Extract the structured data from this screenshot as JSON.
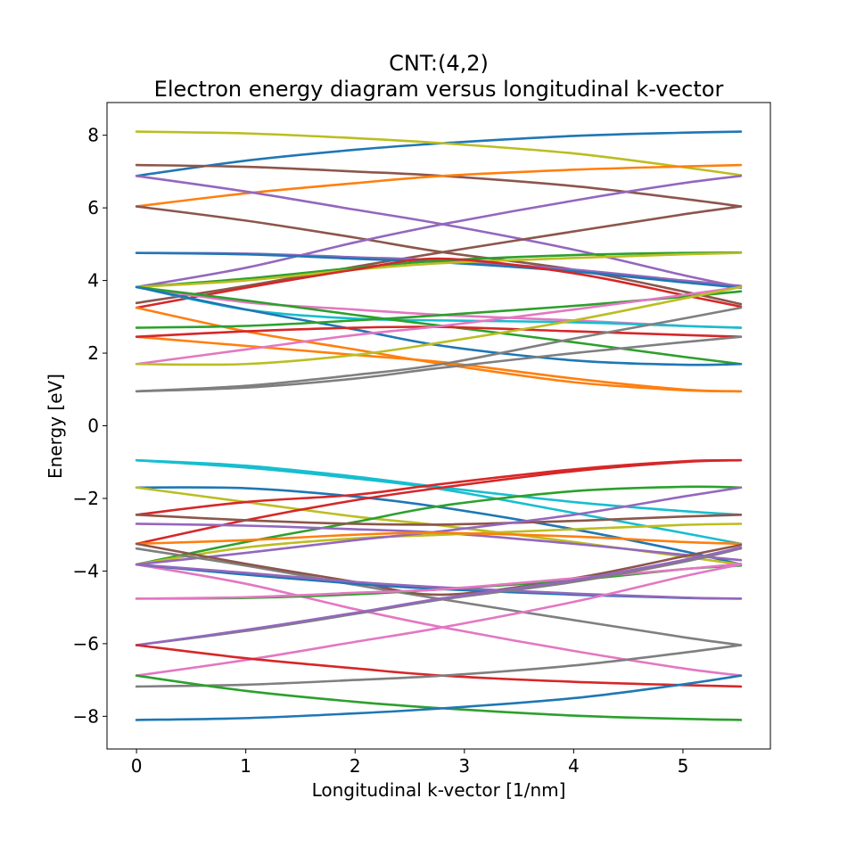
{
  "chart_data": {
    "type": "line",
    "title_line1": "CNT:(4,2)",
    "title_line2": "Electron energy diagram versus longitudinal k-vector",
    "xlabel": "Longitudinal k-vector [1/nm]",
    "ylabel": "Energy [eV]",
    "xlim": [
      -0.27,
      5.8
    ],
    "ylim": [
      -8.9,
      8.9
    ],
    "xticks": [
      0,
      1,
      2,
      3,
      4,
      5
    ],
    "xtick_labels": [
      "0",
      "1",
      "2",
      "3",
      "4",
      "5"
    ],
    "yticks": [
      -8,
      -6,
      -4,
      -2,
      0,
      2,
      4,
      6,
      8
    ],
    "ytick_labels": [
      "−8",
      "−6",
      "−4",
      "−2",
      "0",
      "2",
      "4",
      "6",
      "8"
    ],
    "grid": false,
    "k_max": 5.53,
    "series": [
      {
        "color": "#1f77b4",
        "x": [
          0,
          1,
          2,
          2.8,
          4,
          5,
          5.53
        ],
        "y": [
          6.88,
          7.3,
          7.6,
          7.78,
          7.98,
          8.07,
          8.1
        ]
      },
      {
        "color": "#bcbd22",
        "x": [
          0,
          1,
          2,
          2.8,
          4,
          5,
          5.53
        ],
        "y": [
          8.1,
          8.05,
          7.92,
          7.78,
          7.5,
          7.12,
          6.9
        ]
      },
      {
        "color": "#8c564b",
        "x": [
          0,
          1,
          2,
          2.8,
          4,
          5,
          5.53
        ],
        "y": [
          7.18,
          7.13,
          7.0,
          6.88,
          6.6,
          6.25,
          6.04
        ]
      },
      {
        "color": "#ff7f0e",
        "x": [
          0,
          1,
          2,
          2.8,
          4,
          5,
          5.53
        ],
        "y": [
          6.04,
          6.4,
          6.68,
          6.88,
          7.05,
          7.14,
          7.18
        ]
      },
      {
        "color": "#9467bd",
        "x": [
          0,
          1,
          2,
          2.8,
          4,
          5,
          5.53
        ],
        "y": [
          6.88,
          6.45,
          5.95,
          5.55,
          4.85,
          4.15,
          3.82
        ]
      },
      {
        "color": "#8c564b",
        "x": [
          0,
          1,
          2,
          2.8,
          4,
          5,
          5.53
        ],
        "y": [
          6.04,
          5.65,
          5.18,
          4.78,
          4.3,
          3.7,
          3.35
        ]
      },
      {
        "color": "#9467bd",
        "x": [
          0,
          1,
          2,
          2.8,
          4,
          5,
          5.53
        ],
        "y": [
          3.82,
          4.35,
          5.05,
          5.55,
          6.2,
          6.68,
          6.88
        ]
      },
      {
        "color": "#8c564b",
        "x": [
          0,
          1,
          2,
          2.8,
          4,
          5,
          5.53
        ],
        "y": [
          3.38,
          3.85,
          4.38,
          4.78,
          5.35,
          5.82,
          6.04
        ]
      },
      {
        "color": "#9467bd",
        "x": [
          0,
          1,
          2,
          2.8,
          4,
          5,
          5.53
        ],
        "y": [
          4.76,
          4.74,
          4.64,
          4.55,
          4.3,
          4.0,
          3.85
        ]
      },
      {
        "color": "#1f77b4",
        "x": [
          0,
          1,
          2,
          2.8,
          4,
          5,
          5.53
        ],
        "y": [
          4.76,
          4.72,
          4.6,
          4.5,
          4.25,
          3.95,
          3.8
        ]
      },
      {
        "color": "#2ca02c",
        "x": [
          0,
          1,
          2,
          2.8,
          4,
          5,
          5.53
        ],
        "y": [
          3.82,
          4.05,
          4.35,
          4.55,
          4.7,
          4.76,
          4.77
        ]
      },
      {
        "color": "#bcbd22",
        "x": [
          0,
          1,
          2,
          2.8,
          4,
          5,
          5.53
        ],
        "y": [
          3.82,
          4.0,
          4.3,
          4.48,
          4.62,
          4.72,
          4.76
        ]
      },
      {
        "color": "#d62728",
        "x": [
          0,
          1,
          2,
          2.8,
          4,
          5,
          5.53
        ],
        "y": [
          3.25,
          3.8,
          4.3,
          4.6,
          4.2,
          3.6,
          3.28
        ]
      },
      {
        "color": "#e377c2",
        "x": [
          0,
          1,
          2,
          2.8,
          4,
          5,
          5.53
        ],
        "y": [
          3.82,
          3.4,
          3.2,
          3.05,
          2.9,
          2.75,
          2.7
        ]
      },
      {
        "color": "#17becf",
        "x": [
          0,
          1,
          2,
          2.8,
          4,
          5,
          5.53
        ],
        "y": [
          3.82,
          3.2,
          2.95,
          2.9,
          2.85,
          2.75,
          2.7
        ]
      },
      {
        "color": "#2ca02c",
        "x": [
          0,
          1,
          2,
          2.8,
          4,
          5,
          5.53
        ],
        "y": [
          3.82,
          3.45,
          3.05,
          2.75,
          2.3,
          1.9,
          1.7
        ]
      },
      {
        "color": "#1f77b4",
        "x": [
          0,
          1,
          2,
          2.8,
          4,
          5,
          5.53
        ],
        "y": [
          3.82,
          3.2,
          2.65,
          2.2,
          1.8,
          1.68,
          1.7
        ]
      },
      {
        "color": "#ff7f0e",
        "x": [
          0,
          1,
          2,
          2.8,
          4,
          5,
          5.53
        ],
        "y": [
          3.25,
          2.6,
          2.1,
          1.7,
          1.2,
          0.98,
          0.95
        ]
      },
      {
        "color": "#ff7f0e",
        "x": [
          0,
          1,
          2,
          2.8,
          4,
          5,
          5.53
        ],
        "y": [
          2.45,
          2.2,
          1.95,
          1.75,
          1.3,
          1.0,
          0.95
        ]
      },
      {
        "color": "#d62728",
        "x": [
          0,
          1,
          2,
          2.8,
          4,
          5,
          5.53
        ],
        "y": [
          2.45,
          2.6,
          2.7,
          2.72,
          2.6,
          2.5,
          2.45
        ]
      },
      {
        "color": "#2ca02c",
        "x": [
          0,
          1,
          2,
          2.8,
          4,
          5,
          5.53
        ],
        "y": [
          2.7,
          2.75,
          2.9,
          3.05,
          3.3,
          3.55,
          3.7
        ]
      },
      {
        "color": "#e377c2",
        "x": [
          0,
          1,
          2,
          2.8,
          4,
          5,
          5.53
        ],
        "y": [
          1.7,
          2.1,
          2.5,
          2.75,
          3.2,
          3.6,
          3.82
        ]
      },
      {
        "color": "#bcbd22",
        "x": [
          0,
          1,
          2,
          2.8,
          4,
          5,
          5.53
        ],
        "y": [
          1.7,
          1.7,
          1.95,
          2.3,
          2.9,
          3.5,
          3.82
        ]
      },
      {
        "color": "#7f7f7f",
        "x": [
          0,
          1,
          2,
          2.8,
          4,
          5,
          5.53
        ],
        "y": [
          0.95,
          1.1,
          1.4,
          1.7,
          2.4,
          2.95,
          3.25
        ]
      },
      {
        "color": "#7f7f7f",
        "x": [
          0,
          1,
          2,
          2.8,
          4,
          5,
          5.53
        ],
        "y": [
          0.95,
          1.05,
          1.3,
          1.6,
          2.0,
          2.3,
          2.45
        ]
      },
      {
        "color": "#17becf",
        "x": [
          0,
          1,
          2,
          2.8,
          4,
          5,
          5.53
        ],
        "y": [
          -0.95,
          -1.1,
          -1.4,
          -1.7,
          -2.1,
          -2.35,
          -2.45
        ]
      },
      {
        "color": "#17becf",
        "x": [
          0,
          1,
          2,
          2.8,
          4,
          5,
          5.53
        ],
        "y": [
          -0.95,
          -1.15,
          -1.45,
          -1.75,
          -2.4,
          -2.95,
          -3.25
        ]
      },
      {
        "color": "#1f77b4",
        "x": [
          0,
          1,
          2,
          2.8,
          4,
          5,
          5.53
        ],
        "y": [
          -1.7,
          -1.72,
          -1.95,
          -2.25,
          -2.85,
          -3.45,
          -3.82
        ]
      },
      {
        "color": "#bcbd22",
        "x": [
          0,
          1,
          2,
          2.8,
          4,
          5,
          5.53
        ],
        "y": [
          -1.7,
          -2.1,
          -2.5,
          -2.75,
          -3.2,
          -3.6,
          -3.82
        ]
      },
      {
        "color": "#d62728",
        "x": [
          0,
          1,
          2,
          2.8,
          4,
          5,
          5.53
        ],
        "y": [
          -2.45,
          -2.1,
          -1.9,
          -1.6,
          -1.2,
          -0.98,
          -0.95
        ]
      },
      {
        "color": "#d62728",
        "x": [
          0,
          1,
          2,
          2.8,
          4,
          5,
          5.53
        ],
        "y": [
          -3.25,
          -2.6,
          -2.05,
          -1.7,
          -1.25,
          -1.0,
          -0.95
        ]
      },
      {
        "color": "#2ca02c",
        "x": [
          0,
          1,
          2,
          2.8,
          4,
          5,
          5.53
        ],
        "y": [
          -3.82,
          -3.2,
          -2.65,
          -2.2,
          -1.8,
          -1.68,
          -1.7
        ]
      },
      {
        "color": "#8c564b",
        "x": [
          0,
          1,
          2,
          2.8,
          4,
          5,
          5.53
        ],
        "y": [
          -2.45,
          -2.6,
          -2.7,
          -2.72,
          -2.62,
          -2.5,
          -2.45
        ]
      },
      {
        "color": "#9467bd",
        "x": [
          0,
          1,
          2,
          2.8,
          4,
          5,
          5.53
        ],
        "y": [
          -2.7,
          -2.75,
          -2.85,
          -2.95,
          -3.25,
          -3.55,
          -3.7
        ]
      },
      {
        "color": "#bcbd22",
        "x": [
          0,
          1,
          2,
          2.8,
          4,
          5,
          5.53
        ],
        "y": [
          -3.82,
          -3.35,
          -3.1,
          -3.0,
          -2.85,
          -2.73,
          -2.7
        ]
      },
      {
        "color": "#9467bd",
        "x": [
          0,
          1,
          2,
          2.8,
          4,
          5,
          5.53
        ],
        "y": [
          -3.82,
          -3.5,
          -3.15,
          -2.9,
          -2.45,
          -1.95,
          -1.7
        ]
      },
      {
        "color": "#ff7f0e",
        "x": [
          0,
          1,
          2,
          2.8,
          4,
          5,
          5.53
        ],
        "y": [
          -3.25,
          -3.15,
          -3.0,
          -2.95,
          -3.05,
          -3.2,
          -3.25
        ]
      },
      {
        "color": "#7f7f7f",
        "x": [
          0,
          1,
          2,
          2.8,
          4,
          5,
          5.53
        ],
        "y": [
          -3.38,
          -3.85,
          -4.38,
          -4.78,
          -5.35,
          -5.82,
          -6.04
        ]
      },
      {
        "color": "#8c564b",
        "x": [
          0,
          1,
          2,
          2.8,
          4,
          5,
          5.53
        ],
        "y": [
          -3.25,
          -3.8,
          -4.3,
          -4.65,
          -4.2,
          -3.6,
          -3.28
        ]
      },
      {
        "color": "#e377c2",
        "x": [
          0,
          1,
          2,
          2.8,
          4,
          5,
          5.53
        ],
        "y": [
          -3.82,
          -4.35,
          -5.05,
          -5.55,
          -6.2,
          -6.68,
          -6.88
        ]
      },
      {
        "color": "#1f77b4",
        "x": [
          0,
          1,
          2,
          2.8,
          4,
          5,
          5.53
        ],
        "y": [
          -3.82,
          -4.1,
          -4.35,
          -4.5,
          -4.65,
          -4.74,
          -4.76
        ]
      },
      {
        "color": "#9467bd",
        "x": [
          0,
          1,
          2,
          2.8,
          4,
          5,
          5.53
        ],
        "y": [
          -3.82,
          -4.05,
          -4.3,
          -4.45,
          -4.62,
          -4.73,
          -4.76
        ]
      },
      {
        "color": "#2ca02c",
        "x": [
          0,
          1,
          2,
          2.8,
          4,
          5,
          5.53
        ],
        "y": [
          -4.76,
          -4.74,
          -4.64,
          -4.5,
          -4.25,
          -3.95,
          -3.85
        ]
      },
      {
        "color": "#e377c2",
        "x": [
          0,
          1,
          2,
          2.8,
          4,
          5,
          5.53
        ],
        "y": [
          -4.76,
          -4.72,
          -4.6,
          -4.5,
          -4.2,
          -3.95,
          -3.8
        ]
      },
      {
        "color": "#7f7f7f",
        "x": [
          0,
          1,
          2,
          2.8,
          4,
          5,
          5.53
        ],
        "y": [
          -6.04,
          -5.65,
          -5.18,
          -4.78,
          -4.3,
          -3.75,
          -3.38
        ]
      },
      {
        "color": "#9467bd",
        "x": [
          0,
          1,
          2,
          2.8,
          4,
          5,
          5.53
        ],
        "y": [
          -6.04,
          -5.62,
          -5.15,
          -4.75,
          -4.25,
          -3.7,
          -3.35
        ]
      },
      {
        "color": "#e377c2",
        "x": [
          0,
          1,
          2,
          2.8,
          4,
          5,
          5.53
        ],
        "y": [
          -6.88,
          -6.45,
          -5.95,
          -5.55,
          -4.85,
          -4.15,
          -3.82
        ]
      },
      {
        "color": "#d62728",
        "x": [
          0,
          1,
          2,
          2.8,
          4,
          5,
          5.53
        ],
        "y": [
          -6.04,
          -6.4,
          -6.68,
          -6.88,
          -7.05,
          -7.14,
          -7.18
        ]
      },
      {
        "color": "#7f7f7f",
        "x": [
          0,
          1,
          2,
          2.8,
          4,
          5,
          5.53
        ],
        "y": [
          -7.18,
          -7.13,
          -7.0,
          -6.88,
          -6.6,
          -6.25,
          -6.04
        ]
      },
      {
        "color": "#2ca02c",
        "x": [
          0,
          1,
          2,
          2.8,
          4,
          5,
          5.53
        ],
        "y": [
          -6.88,
          -7.3,
          -7.6,
          -7.78,
          -7.98,
          -8.07,
          -8.1
        ]
      },
      {
        "color": "#1f77b4",
        "x": [
          0,
          1,
          2,
          2.8,
          4,
          5,
          5.53
        ],
        "y": [
          -8.1,
          -8.05,
          -7.92,
          -7.78,
          -7.5,
          -7.12,
          -6.88
        ]
      }
    ]
  }
}
